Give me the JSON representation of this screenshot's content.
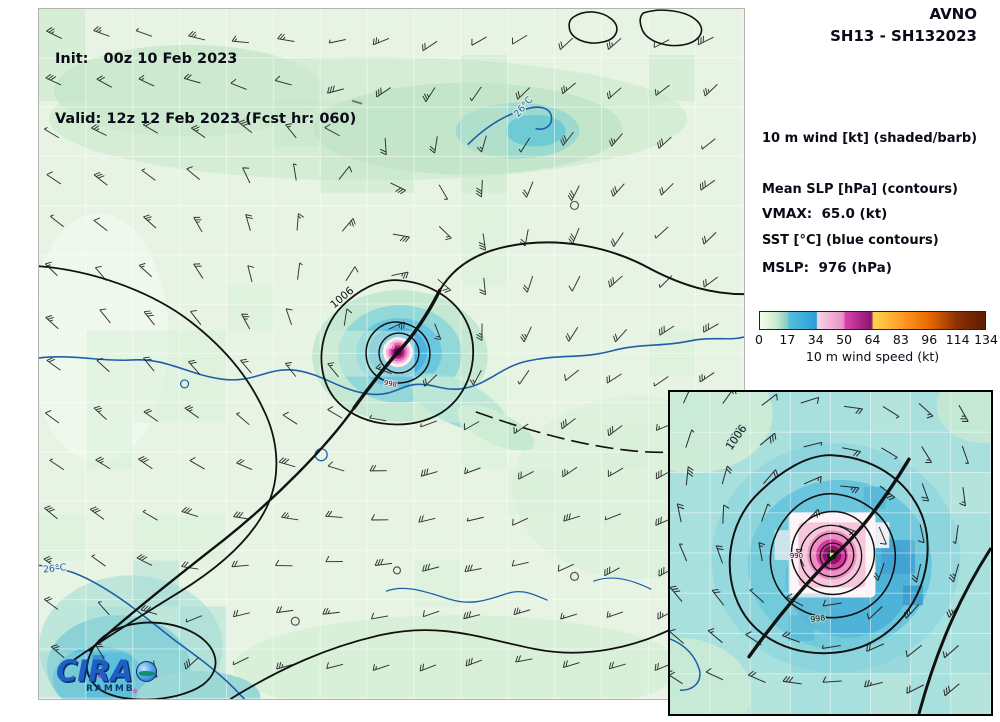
{
  "header": {
    "init_line": "Init:   00z 10 Feb 2023",
    "valid_line": "Valid: 12z 12 Feb 2023 (Fcst hr: 060)"
  },
  "panel": {
    "model": "AVNO",
    "storm_id": "SH13 - SH132023",
    "legend_line1": "10 m wind [kt] (shaded/barb)",
    "legend_line2": "Mean SLP [hPa] (contours)",
    "legend_line3": "SST [°C] (blue contours)",
    "vmax_line": "VMAX:  65.0 (kt)",
    "mslp_line": "MSLP:  976 (hPa)"
  },
  "colorbar": {
    "ticks": [
      "0",
      "17",
      "34",
      "50",
      "64",
      "83",
      "96",
      "114",
      "134"
    ],
    "label": "10 m wind speed (kt)",
    "stops": [
      {
        "p": 0,
        "c": "#f4fbf0"
      },
      {
        "p": 7,
        "c": "#cdeccc"
      },
      {
        "p": 12.4,
        "c": "#7fccc8"
      },
      {
        "p": 13,
        "c": "#55bfdc"
      },
      {
        "p": 25,
        "c": "#2b9ed8"
      },
      {
        "p": 25.6,
        "c": "#f6d5e6"
      },
      {
        "p": 37,
        "c": "#ec8fc6"
      },
      {
        "p": 38,
        "c": "#d843ac"
      },
      {
        "p": 49.5,
        "c": "#8c1370"
      },
      {
        "p": 50.5,
        "c": "#ffd44f"
      },
      {
        "p": 62.5,
        "c": "#ff9d2a"
      },
      {
        "p": 75,
        "c": "#ea6a00"
      },
      {
        "p": 87.5,
        "c": "#8c3103"
      },
      {
        "p": 100,
        "c": "#5c1e02"
      }
    ]
  },
  "map": {
    "labels": {
      "isobar_outer": "1006",
      "isobar_mid": "998",
      "isobar_center": "990",
      "sst": "26°C"
    }
  },
  "inset": {
    "labels": {
      "isobar_outer": "1006",
      "isobar_mid": "998",
      "isobar_center": "990"
    }
  },
  "logo": {
    "cira": "CIRA",
    "rammb": "RAMMB"
  }
}
